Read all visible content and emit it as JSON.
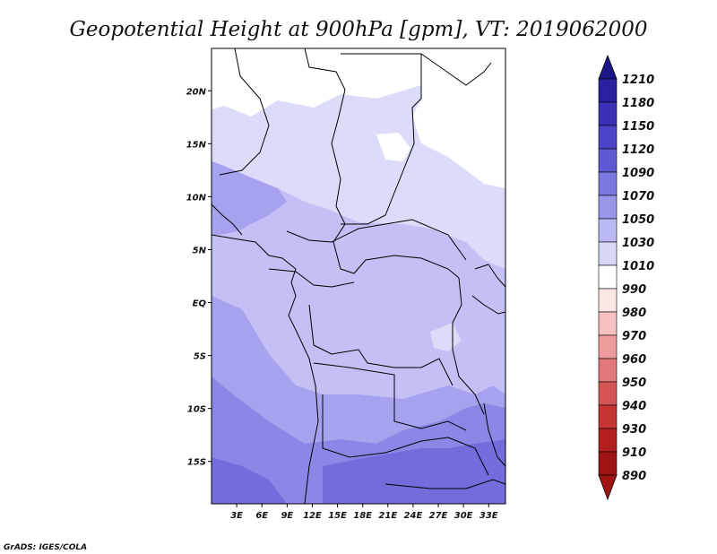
{
  "title": "Geopotential Height at 900hPa [gpm], VT: 2019062000",
  "credit": "GrADS: IGES/COLA",
  "map": {
    "lon_ticks": [
      "3E",
      "6E",
      "9E",
      "12E",
      "15E",
      "18E",
      "21E",
      "24E",
      "27E",
      "30E",
      "33E"
    ],
    "lat_ticks": [
      "20N",
      "15N",
      "10N",
      "5N",
      "EQ",
      "5S",
      "10S",
      "15S"
    ],
    "lon_range": [
      0,
      35
    ],
    "lat_range": [
      -19,
      24
    ]
  },
  "colorbar": {
    "levels": [
      "1210",
      "1180",
      "1150",
      "1120",
      "1090",
      "1070",
      "1050",
      "1030",
      "1010",
      "990",
      "980",
      "970",
      "960",
      "950",
      "940",
      "930",
      "910",
      "890"
    ],
    "colors": [
      "#1d1688",
      "#2a21a2",
      "#3a30b8",
      "#4c44c8",
      "#5f59d4",
      "#7b78e0",
      "#9a97ea",
      "#bab8f2",
      "#d7d7f8",
      "#ffffff",
      "#fde6e6",
      "#f7c1c1",
      "#ee9b9b",
      "#e27878",
      "#d55454",
      "#c63434",
      "#b42020",
      "#a01414"
    ]
  },
  "fields": {
    "palette": {
      "white": "#ffffff",
      "h1010": "#dcdcfa",
      "h1030": "#c2c0f4",
      "h1050": "#a6a2ee",
      "h1070": "#8c86e6",
      "h1090": "#736cdc"
    }
  }
}
